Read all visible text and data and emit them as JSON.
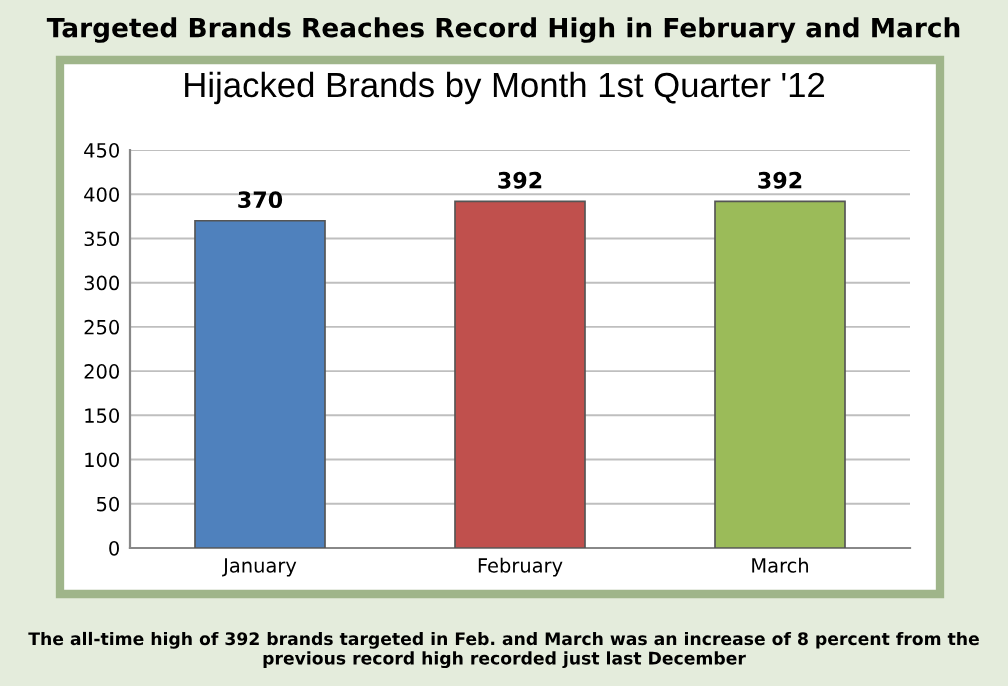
{
  "chart_data": {
    "type": "bar",
    "title": "Targeted Brands Reaches Record High in February and March",
    "subtitle": "Hijacked Brands by Month 1st Quarter '12",
    "categories": [
      "January",
      "February",
      "March"
    ],
    "values": [
      370,
      392,
      392
    ],
    "colors": [
      "#4f81bd",
      "#c0504d",
      "#9bbb59"
    ],
    "ylim": [
      0,
      450
    ],
    "yticks": [
      0,
      50,
      100,
      150,
      200,
      250,
      300,
      350,
      400,
      450
    ],
    "grid": "y",
    "data_labels": true,
    "legend": false,
    "annotations": [
      "The all-time high of 392 brands targeted in Feb. and March was an increase of 8 percent from the previous record high recorded just last December"
    ]
  }
}
